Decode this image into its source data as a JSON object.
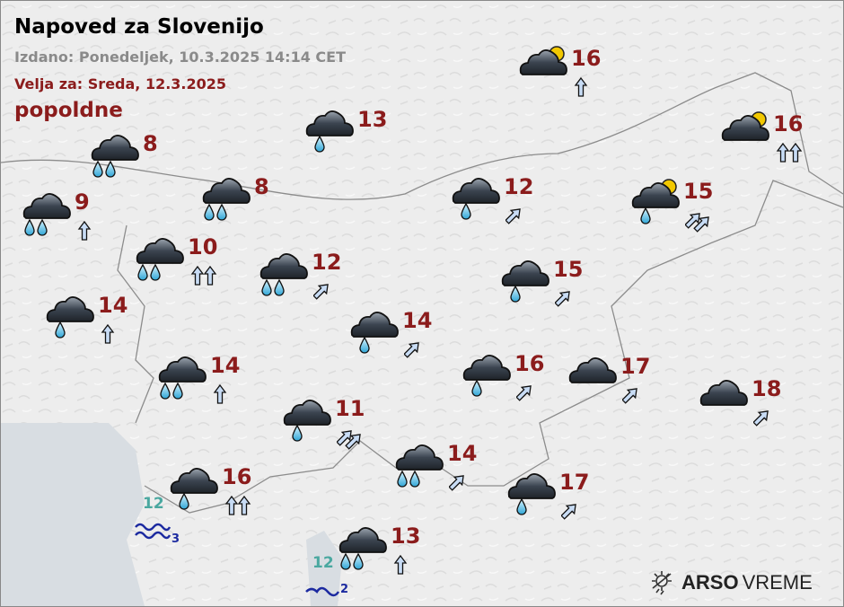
{
  "header": {
    "title": "Napoved za Slovenijo",
    "issued": "Izdano: Ponedeljek, 10.3.2025 14:14 CET",
    "valid_for": "Velja za: Sreda, 12.3.2025",
    "period": "popoldne"
  },
  "colors": {
    "temp": "#8b1c1c",
    "sea_temp": "#4aa8a0",
    "wave": "#1c2aa0",
    "issued": "#8a8a8a"
  },
  "stations": [
    {
      "icon": "cloud-sun-icon",
      "temp": "16",
      "wind_dir": "N",
      "wind_count": 1
    },
    {
      "icon": "cloud-rain-icon",
      "temp": "13",
      "wind_dir": "",
      "wind_count": 0
    },
    {
      "icon": "cloud-sun-icon",
      "temp": "16",
      "wind_dir": "N",
      "wind_count": 2
    },
    {
      "icon": "cloud-heavy-rain-icon",
      "temp": "8",
      "wind_dir": "",
      "wind_count": 0
    },
    {
      "icon": "cloud-heavy-rain-icon",
      "temp": "9",
      "wind_dir": "N",
      "wind_count": 1
    },
    {
      "icon": "cloud-heavy-rain-icon",
      "temp": "8",
      "wind_dir": "",
      "wind_count": 0
    },
    {
      "icon": "cloud-rain-icon",
      "temp": "12",
      "wind_dir": "NE",
      "wind_count": 1
    },
    {
      "icon": "cloud-sun-rain-icon",
      "temp": "15",
      "wind_dir": "NE",
      "wind_count": 2
    },
    {
      "icon": "cloud-heavy-rain-icon",
      "temp": "10",
      "wind_dir": "N",
      "wind_count": 2
    },
    {
      "icon": "cloud-heavy-rain-icon",
      "temp": "12",
      "wind_dir": "NE",
      "wind_count": 1
    },
    {
      "icon": "cloud-rain-icon",
      "temp": "15",
      "wind_dir": "NE",
      "wind_count": 1
    },
    {
      "icon": "cloud-rain-icon",
      "temp": "14",
      "wind_dir": "N",
      "wind_count": 1
    },
    {
      "icon": "cloud-rain-icon",
      "temp": "14",
      "wind_dir": "NE",
      "wind_count": 1
    },
    {
      "icon": "cloud-heavy-rain-icon",
      "temp": "14",
      "wind_dir": "N",
      "wind_count": 1
    },
    {
      "icon": "cloud-rain-icon",
      "temp": "16",
      "wind_dir": "NE",
      "wind_count": 1
    },
    {
      "icon": "cloud-icon",
      "temp": "17",
      "wind_dir": "NE",
      "wind_count": 1
    },
    {
      "icon": "cloud-icon",
      "temp": "18",
      "wind_dir": "NE",
      "wind_count": 1
    },
    {
      "icon": "cloud-rain-icon",
      "temp": "11",
      "wind_dir": "NE",
      "wind_count": 2
    },
    {
      "icon": "cloud-heavy-rain-icon",
      "temp": "14",
      "wind_dir": "NE",
      "wind_count": 1
    },
    {
      "icon": "cloud-rain-icon",
      "temp": "16",
      "wind_dir": "N",
      "wind_count": 2
    },
    {
      "icon": "cloud-rain-icon",
      "temp": "17",
      "wind_dir": "NE",
      "wind_count": 1
    },
    {
      "icon": "cloud-heavy-rain-icon",
      "temp": "13",
      "wind_dir": "N",
      "wind_count": 1
    }
  ],
  "sea": [
    {
      "temp": "12",
      "wave_height": "3"
    },
    {
      "temp": "12",
      "wave_height": "2"
    }
  ],
  "logo": {
    "brand": "ARSO",
    "product": "VREME"
  }
}
